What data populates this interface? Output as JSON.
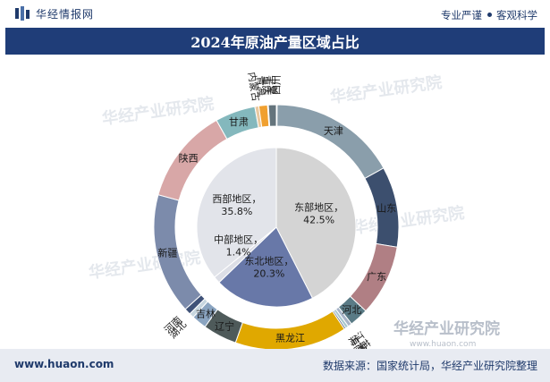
{
  "header": {
    "brand": "华经情报网",
    "tagline_left": "专业严谨",
    "tagline_right": "客观科学"
  },
  "title": "2024年原油产量区域占比",
  "watermarks": [
    "华经产业研究院",
    "www.huaon.com"
  ],
  "footer": {
    "site": "www.huaon.com",
    "source": "数据来源：国家统计局，华经产业研究院整理"
  },
  "colors": {
    "title_bg": "#1f3d78",
    "footer_bg": "#e8ebf2",
    "text_navy": "#1f3a6b"
  },
  "chart_data": {
    "type": "donut",
    "inner": {
      "label_sep": "，",
      "slices": [
        {
          "name": "东部地区",
          "value": 42.5,
          "label": "42.5%",
          "color": "#d4d4d4"
        },
        {
          "name": "东北地区",
          "value": 20.3,
          "label": "20.3%",
          "color": "#6878a8"
        },
        {
          "name": "中部地区",
          "value": 1.4,
          "label": "1.4%",
          "color": "#dcdee6"
        },
        {
          "name": "西部地区",
          "value": 35.8,
          "label": "35.8%",
          "color": "#e2e4ea"
        }
      ]
    },
    "outer": {
      "slices": [
        {
          "name": "四川",
          "value": 0.1,
          "color": "#e0a0a0"
        },
        {
          "name": "天津",
          "value": 16.2,
          "color": "#8a9eab"
        },
        {
          "name": "山东",
          "value": 10.2,
          "color": "#3c4f6e"
        },
        {
          "name": "广东",
          "value": 9.0,
          "color": "#b07f84"
        },
        {
          "name": "河北",
          "value": 2.4,
          "color": "#5a7b86"
        },
        {
          "name": "江苏",
          "value": 0.5,
          "color": "#a7b4c8"
        },
        {
          "name": "上海",
          "value": 0.4,
          "color": "#aac8cf"
        },
        {
          "name": "海南",
          "value": 0.2,
          "color": "#2a3d5c"
        },
        {
          "name": "黑龙江",
          "value": 14.2,
          "color": "#e0a800"
        },
        {
          "name": "辽宁",
          "value": 4.3,
          "color": "#4e5a5a"
        },
        {
          "name": "吉林",
          "value": 1.9,
          "color": "#8aa4c0"
        },
        {
          "name": "湖北",
          "value": 0.6,
          "color": "#c7d6df"
        },
        {
          "name": "河南",
          "value": 0.8,
          "color": "#3f5278"
        },
        {
          "name": "新疆",
          "value": 15.3,
          "color": "#7c8bab"
        },
        {
          "name": "陕西",
          "value": 12.1,
          "color": "#d8a7a7"
        },
        {
          "name": "甘肃",
          "value": 5.1,
          "color": "#84b8bd"
        },
        {
          "name": "内蒙古",
          "value": 0.5,
          "color": "#e8c8a0"
        },
        {
          "name": "青海",
          "value": 1.1,
          "color": "#f0a030"
        },
        {
          "name": "重庆",
          "value": 0.1,
          "color": "#c0c8d0"
        },
        {
          "name": "宁夏",
          "value": 1.0,
          "color": "#64747c"
        }
      ]
    }
  }
}
